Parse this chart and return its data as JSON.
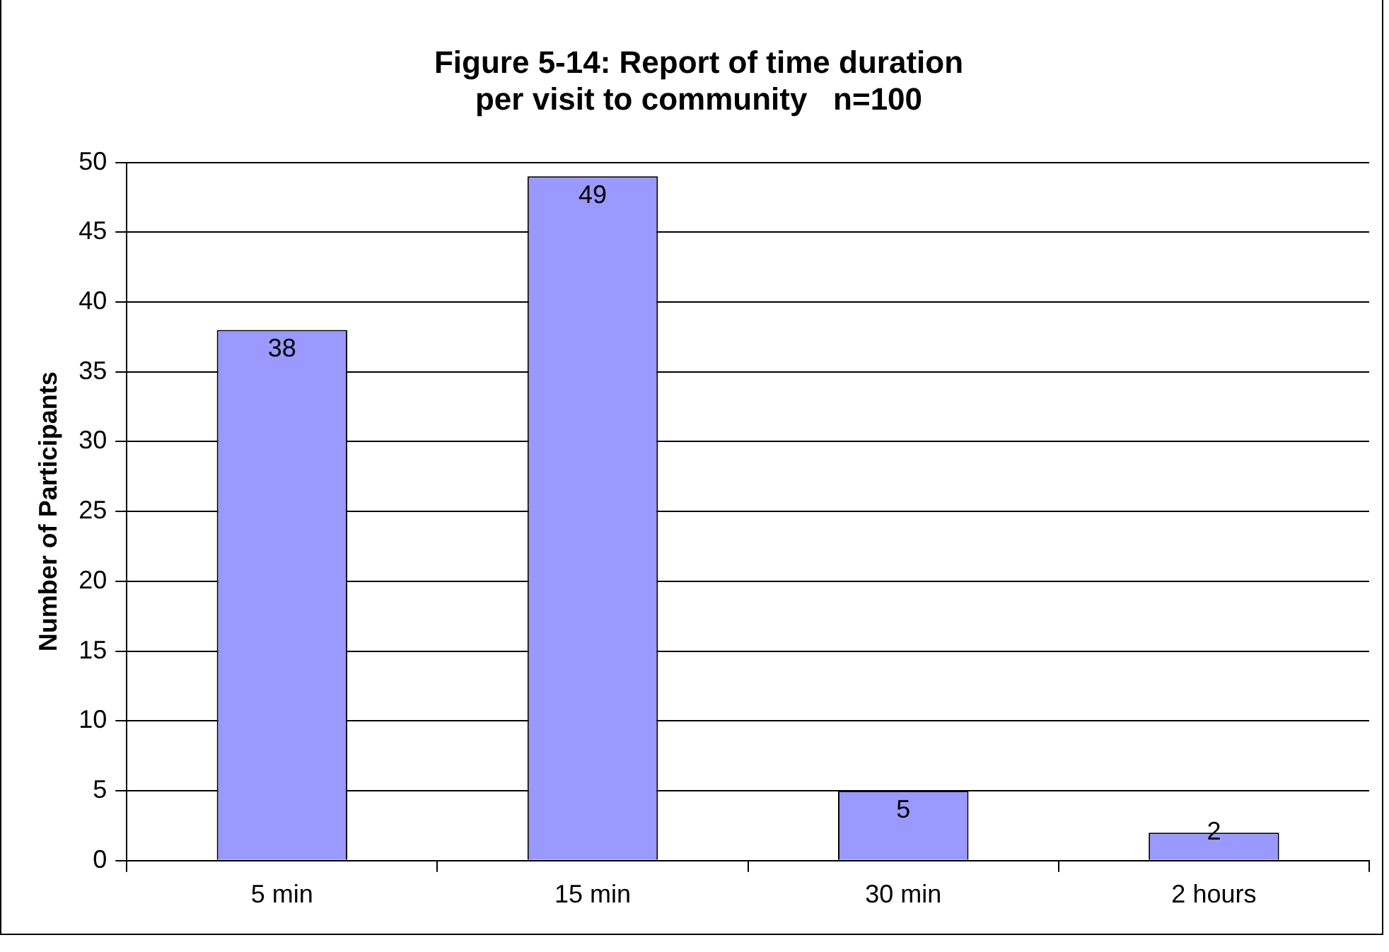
{
  "chart_data": {
    "type": "bar",
    "title": "Figure 5-14: Report of time duration\nper visit to community   n=100",
    "ylabel": "Number of Participants",
    "categories": [
      "5 min",
      "15 min",
      "30 min",
      "2 hours"
    ],
    "values": [
      38,
      49,
      5,
      2
    ],
    "color": "#9999ff",
    "ylim": [
      0,
      50
    ],
    "yticks": [
      0,
      5,
      10,
      15,
      20,
      25,
      30,
      35,
      40,
      45,
      50
    ],
    "grid": "y",
    "legend": false,
    "data_labels": true
  }
}
